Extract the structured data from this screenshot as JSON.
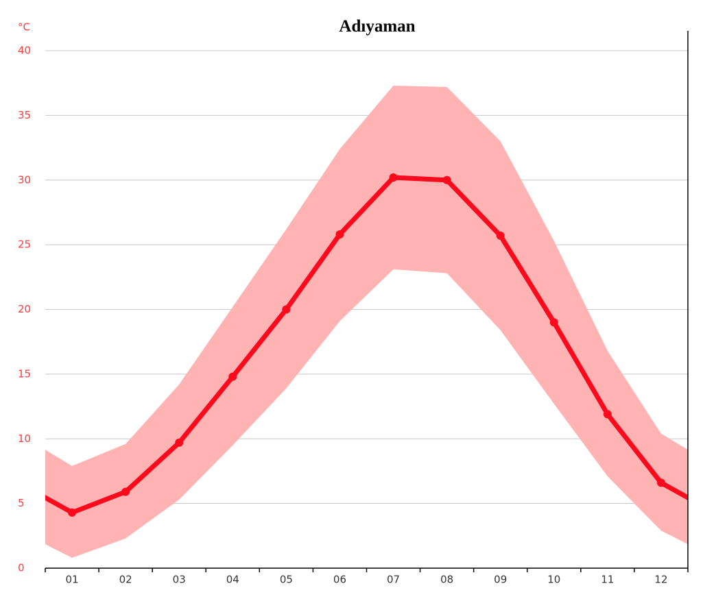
{
  "chart_data": {
    "type": "line",
    "title": "Adıyaman",
    "y_unit": "°C",
    "categories": [
      "01",
      "02",
      "03",
      "04",
      "05",
      "06",
      "07",
      "08",
      "09",
      "10",
      "11",
      "12"
    ],
    "values": [
      4.3,
      5.9,
      9.7,
      14.8,
      20.0,
      25.8,
      30.2,
      30.0,
      25.7,
      19.0,
      11.9,
      6.6
    ],
    "color": "#fb0a1e",
    "band": {
      "low": [
        0.8,
        2.3,
        5.3,
        9.5,
        13.9,
        19.1,
        23.1,
        22.8,
        18.4,
        12.7,
        7.1,
        2.9
      ],
      "high": [
        7.9,
        9.6,
        14.2,
        20.2,
        26.2,
        32.4,
        37.3,
        37.2,
        33.0,
        25.3,
        16.8,
        10.4
      ],
      "color": "#ffb3b3"
    },
    "ylim": [
      0,
      40
    ],
    "yticks": [
      0,
      5,
      10,
      15,
      20,
      25,
      30,
      35,
      40
    ],
    "grid": true
  }
}
